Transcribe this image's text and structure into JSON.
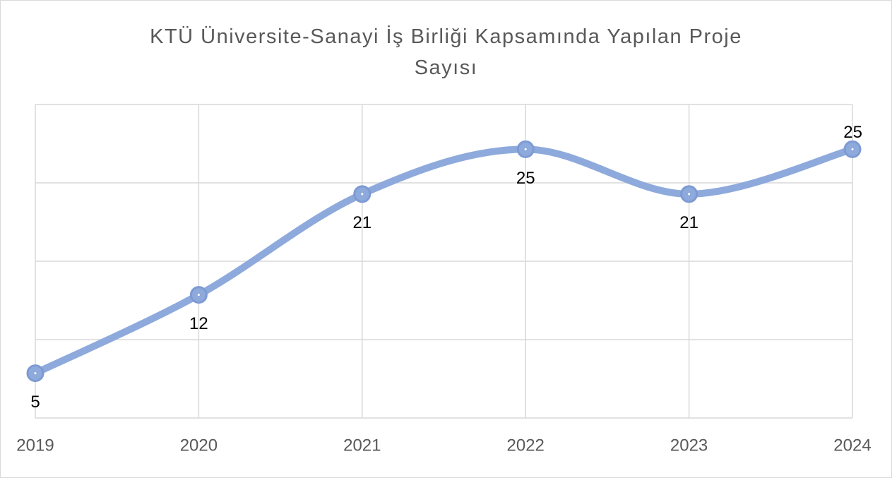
{
  "chart_data": {
    "type": "line",
    "title": "KTÜ Üniversite-Sanayi İş Birliği Kapsamında Yapılan Proje Sayısı",
    "categories": [
      "2019",
      "2020",
      "2021",
      "2022",
      "2023",
      "2024"
    ],
    "values": [
      5,
      12,
      21,
      25,
      21,
      25
    ],
    "color": "#8eaadc",
    "ylim": [
      1,
      29
    ],
    "yticks": [
      1,
      8,
      15,
      22,
      29
    ],
    "grid": true,
    "smooth": true
  }
}
